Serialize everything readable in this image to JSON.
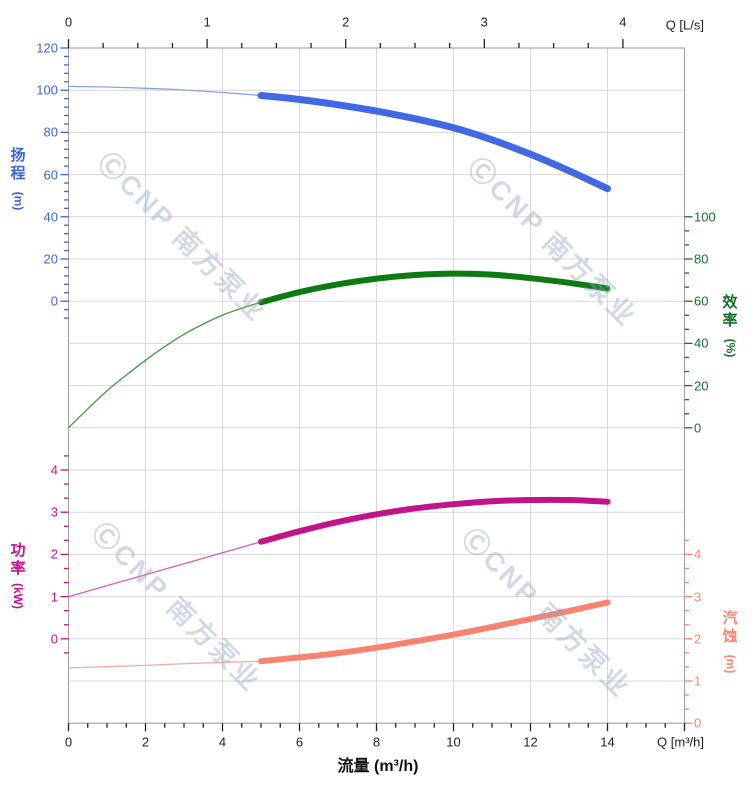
{
  "app": {
    "type": "pump-performance-curve-chart",
    "brand_watermark": "ⒸCNP 南方泵业"
  },
  "chart_data": {
    "type": "line",
    "title": "",
    "x_axis_bottom": {
      "title": "流量 (m³/h)",
      "corner_label": "Q [m³/h]",
      "tick_labels": [
        0,
        2,
        4,
        6,
        8,
        10,
        12,
        14
      ],
      "range": [
        0,
        16
      ],
      "minor_step": 0.5,
      "color": "#222222"
    },
    "x_axis_top": {
      "corner_label": "Q [L/s]",
      "tick_labels": [
        0,
        1,
        2,
        3,
        4
      ],
      "range": [
        0,
        4.44
      ],
      "minor_step": 0.25,
      "color": "#222222"
    },
    "axes": {
      "head": {
        "label": "扬程",
        "unit": "(m)",
        "tick_values": [
          120,
          100,
          80,
          60,
          40,
          20,
          0
        ],
        "color": "#3E63D7",
        "side": "left",
        "top_value": 120,
        "units_per_row": 20
      },
      "efficiency": {
        "label": "效率",
        "unit": "(%)",
        "tick_values": [
          100,
          80,
          60,
          40,
          20,
          0
        ],
        "color": "#176F2B",
        "side": "right",
        "top_value": 180,
        "units_per_row": 20
      },
      "power": {
        "label": "功率",
        "unit": "(kW)",
        "tick_values": [
          4,
          3,
          2,
          1,
          0
        ],
        "color": "#C1138A",
        "side": "left",
        "top_value": 14,
        "units_per_row": 1
      },
      "npsh": {
        "label": "汽蚀",
        "unit": "(m)",
        "tick_values": [
          4,
          3,
          2,
          1,
          0
        ],
        "color": "#F8836F",
        "side": "right",
        "top_value": 16,
        "units_per_row": 1
      }
    },
    "series": [
      {
        "name": "head",
        "axis": "head",
        "color": "#4169E1",
        "thin_color": "#8AA2E8",
        "bold_from": 5,
        "bold_width": 7,
        "points": [
          [
            0,
            101.8
          ],
          [
            1,
            101.5
          ],
          [
            2,
            100.9
          ],
          [
            3,
            100.1
          ],
          [
            4,
            98.9
          ],
          [
            5,
            97.5
          ],
          [
            6,
            95.6
          ],
          [
            7,
            93.1
          ],
          [
            8,
            90.1
          ],
          [
            9,
            86.5
          ],
          [
            10,
            82.2
          ],
          [
            11,
            76.5
          ],
          [
            12,
            69.6
          ],
          [
            13,
            61.8
          ],
          [
            14,
            53.3
          ]
        ]
      },
      {
        "name": "efficiency",
        "axis": "efficiency",
        "color": "#0D7A12",
        "thin_color": "#3F9A3F",
        "bold_from": 5,
        "bold_width": 6,
        "points": [
          [
            0,
            0
          ],
          [
            0.5,
            9
          ],
          [
            1,
            17.5
          ],
          [
            1.5,
            25
          ],
          [
            2,
            32
          ],
          [
            2.5,
            38.5
          ],
          [
            3,
            44.3
          ],
          [
            3.5,
            49.2
          ],
          [
            4,
            53.4
          ],
          [
            4.5,
            56.7
          ],
          [
            5,
            59.5
          ],
          [
            6,
            64.3
          ],
          [
            7,
            68
          ],
          [
            8,
            70.7
          ],
          [
            9,
            72.4
          ],
          [
            10,
            73.1
          ],
          [
            11,
            72.6
          ],
          [
            12,
            70.9
          ],
          [
            13,
            68.7
          ],
          [
            14,
            66
          ]
        ]
      },
      {
        "name": "power",
        "axis": "power",
        "color": "#C1138A",
        "thin_color": "#D55FB3",
        "bold_from": 5,
        "bold_width": 6,
        "points": [
          [
            0,
            1.0
          ],
          [
            1,
            1.26
          ],
          [
            2,
            1.52
          ],
          [
            3,
            1.78
          ],
          [
            4,
            2.04
          ],
          [
            5,
            2.3
          ],
          [
            6,
            2.55
          ],
          [
            7,
            2.77
          ],
          [
            8,
            2.95
          ],
          [
            9,
            3.09
          ],
          [
            10,
            3.19
          ],
          [
            11,
            3.26
          ],
          [
            12,
            3.29
          ],
          [
            13,
            3.29
          ],
          [
            14,
            3.25
          ]
        ]
      },
      {
        "name": "npsh",
        "axis": "npsh",
        "color": "#F8836F",
        "thin_color": "#FBAB9E",
        "bold_from": 5,
        "bold_width": 6,
        "points": [
          [
            0,
            1.31
          ],
          [
            1,
            1.34
          ],
          [
            2,
            1.37
          ],
          [
            3,
            1.41
          ],
          [
            4,
            1.44
          ],
          [
            5,
            1.47
          ],
          [
            6,
            1.56
          ],
          [
            7,
            1.66
          ],
          [
            8,
            1.79
          ],
          [
            9,
            1.94
          ],
          [
            10,
            2.1
          ],
          [
            11,
            2.28
          ],
          [
            12,
            2.47
          ],
          [
            13,
            2.66
          ],
          [
            14,
            2.86
          ]
        ]
      }
    ],
    "grid": {
      "color": "#D7D7D7",
      "border_color": "#A6A6A6",
      "h_rows": 16,
      "v_cols": 8
    },
    "watermark": {
      "text": "ⒸCNP 南方泵业",
      "color": "rgba(150,165,190,0.42)"
    }
  }
}
